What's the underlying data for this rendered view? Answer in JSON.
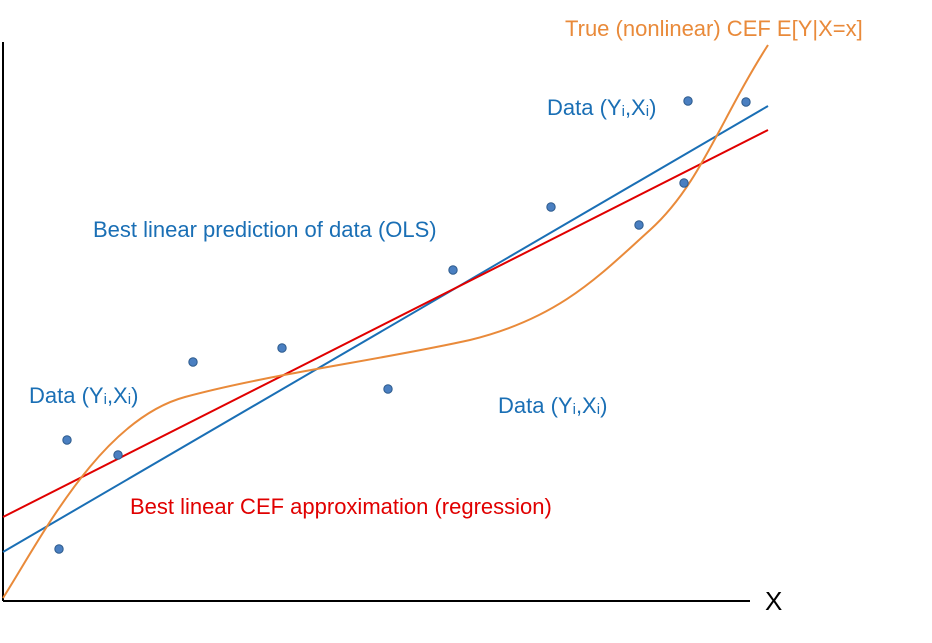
{
  "labels": {
    "cef_true": "True (nonlinear) CEF E[Y|X=x]",
    "ols": "Best linear prediction of data (OLS)",
    "regression": "Best linear CEF approximation (regression)",
    "data_label": "Data (Y",
    "data_sub": "i",
    "data_mid": ",X",
    "data_end": ")",
    "x_axis": "X"
  },
  "colors": {
    "axis": "#000000",
    "ols_line": "#1a6fb5",
    "regression_line": "#e00000",
    "cef_curve": "#e98a3a",
    "point_fill": "#4a7fc1",
    "point_stroke": "#2c5a8c",
    "label_blue": "#1a6fb5",
    "label_red": "#e00000",
    "label_orange": "#e98a3a"
  }
}
